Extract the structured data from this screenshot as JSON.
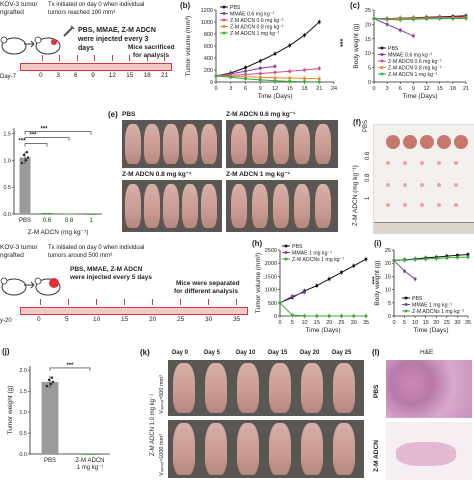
{
  "panel_a": {
    "title1": "KOV-3 tumor",
    "title2": "ngrafted",
    "tx_text1": "Tx initiated on day 0 when individual",
    "tx_text2": "tumors reached 100 mm³",
    "inject_text1": "PBS, MMAE, Z-M ADCN",
    "inject_text2": "were injected every 3",
    "inject_text3": "days",
    "sac_text1": "Mice sacrificed",
    "sac_text2": "for analysis",
    "day_start": "Day-7",
    "timeline": [
      "0",
      "3",
      "6",
      "9",
      "12",
      "15",
      "18",
      "21"
    ]
  },
  "panel_lower_a": {
    "title1": "KOV-3 tumor",
    "title2": "ngrafted",
    "tx_text1": "Tx initiated on day 0 when individual",
    "tx_text2": "tumors around 500 mm³",
    "inject_text1": "PBS, MMAE, Z-M ADCN",
    "inject_text2": "were injected every 5 days",
    "sep_text1": "Mice were separated",
    "sep_text2": "for different analysis",
    "day_start": "y-20",
    "timeline": [
      "0",
      "5",
      "10",
      "15",
      "20",
      "25",
      "30",
      "35"
    ]
  },
  "panel_e": {
    "label": "(e)",
    "rows": [
      "PBS",
      "Z-M ADCN 0.6 mg kg⁻¹",
      "Z-M ADCN 0.8 mg kg⁻¹",
      "Z-M ADCN 1 mg kg⁻¹"
    ]
  },
  "panel_f": {
    "label": "(f)",
    "side_label": "Z-M ADCN (mg kg⁻¹)",
    "rows": [
      "PBS",
      "0.6",
      "0.8",
      "1"
    ]
  },
  "panel_k": {
    "label": "(k)",
    "days": [
      "Day 0",
      "Day 5",
      "Day 10",
      "Day 15",
      "Day 20",
      "Day 25"
    ],
    "side_label": "Z-M ADCN 1.0 mg kg⁻¹",
    "v500": "Vₜᵤₘₒᵣ≈500 mm³",
    "v1000": "Vₜᵤₘₒᵣ≈1000 mm³"
  },
  "panel_l": {
    "label": "(l)",
    "title": "H&E",
    "rows": [
      "PBS",
      "Z-M ADCN"
    ]
  },
  "colors": {
    "pbs": "#111111",
    "mmae": "#7b3fa0",
    "zm06": "#d24a8a",
    "zm08": "#e5892a",
    "zm1": "#3aa83a",
    "bar": "#9a9a9a",
    "timeline": "#f2c8c8",
    "timeline_line": "#d23c3c"
  },
  "chart_data": [
    {
      "id": "b",
      "panel_label": "(b)",
      "type": "line",
      "ylabel": "Tumor volume (mm³)",
      "xlabel": "Time (Days)",
      "x": [
        0,
        3,
        6,
        9,
        12,
        15,
        18,
        21
      ],
      "xticks": [
        0,
        3,
        6,
        9,
        12,
        15,
        18,
        21,
        24
      ],
      "yticks": [
        0,
        200,
        400,
        600,
        800,
        1000,
        1200
      ],
      "xlim": [
        0,
        24
      ],
      "ylim": [
        0,
        1200
      ],
      "annotation": "***",
      "series": [
        {
          "name": "PBS",
          "values": [
            100,
            150,
            240,
            350,
            470,
            610,
            780,
            1000
          ]
        },
        {
          "name": "MMAE 0.6 mg kg⁻¹",
          "values": [
            100,
            135,
            180,
            230,
            260,
            null,
            null,
            null
          ]
        },
        {
          "name": "Z-M ADCN 0.6 mg kg⁻¹",
          "values": [
            100,
            110,
            125,
            140,
            160,
            180,
            200,
            225
          ]
        },
        {
          "name": "Z-M ADCN 0.8 mg kg⁻¹",
          "values": [
            100,
            95,
            90,
            80,
            70,
            65,
            60,
            55
          ]
        },
        {
          "name": "Z-M ADCN 1 mg kg⁻¹",
          "values": [
            100,
            80,
            55,
            35,
            20,
            10,
            5,
            2
          ]
        }
      ]
    },
    {
      "id": "c",
      "panel_label": "(c)",
      "type": "line",
      "ylabel": "Body weight (g)",
      "xlabel": "Time (Days)",
      "x": [
        0,
        3,
        6,
        9,
        12,
        15,
        18,
        21
      ],
      "xticks": [
        0,
        3,
        6,
        9,
        12,
        15,
        18,
        21
      ],
      "yticks": [
        0,
        5,
        10,
        15,
        20,
        25
      ],
      "xlim": [
        0,
        21
      ],
      "ylim": [
        0,
        25
      ],
      "series": [
        {
          "name": "PBS",
          "values": [
            22,
            22,
            22.2,
            22.3,
            22.5,
            22.6,
            22.8,
            23
          ]
        },
        {
          "name": "MMAE 0.6 mg kg⁻¹",
          "values": [
            22,
            20,
            18,
            16,
            null,
            null,
            null,
            null
          ]
        },
        {
          "name": "Z-M ADCN 0.6 mg kg⁻¹",
          "values": [
            22,
            22,
            22.1,
            22.2,
            22.3,
            22.4,
            22.5,
            22.6
          ]
        },
        {
          "name": "Z-M ADCN 0.8 mg kg⁻¹",
          "values": [
            22,
            21.8,
            21.9,
            22,
            22.1,
            22.1,
            22.2,
            22.3
          ]
        },
        {
          "name": "Z-M ADCN 1 mg kg⁻¹",
          "values": [
            22,
            21.7,
            21.6,
            21.8,
            21.9,
            22,
            22,
            22.1
          ]
        }
      ]
    },
    {
      "id": "d",
      "panel_label": "",
      "type": "bar",
      "ylabel": "",
      "xlabel": "Z-M ADCN (mg kg⁻¹)",
      "categories": [
        "PBS",
        "0.6",
        "0.8",
        "1"
      ],
      "values": [
        1.05,
        0.02,
        0.01,
        0.0
      ],
      "yticks": [
        0.0,
        0.5,
        1.0,
        1.5
      ],
      "ylim": [
        0,
        1.6
      ],
      "annotation": "***"
    },
    {
      "id": "h",
      "panel_label": "(h)",
      "type": "line",
      "ylabel": "Tumor volume (mm³)",
      "xlabel": "Time (Days)",
      "x": [
        0,
        5,
        10,
        15,
        20,
        25,
        30,
        35
      ],
      "xticks": [
        0,
        5,
        10,
        15,
        20,
        25,
        30,
        35
      ],
      "yticks": [
        0,
        500,
        1000,
        1500,
        2000,
        2500
      ],
      "xlim": [
        0,
        35
      ],
      "ylim": [
        0,
        2500
      ],
      "annotation": "***",
      "series": [
        {
          "name": "PBS",
          "values": [
            500,
            700,
            950,
            1150,
            1400,
            1650,
            1900,
            2150
          ]
        },
        {
          "name": "MMAE 1 mg kg⁻¹",
          "values": [
            500,
            750,
            900,
            null,
            null,
            null,
            null,
            null
          ]
        },
        {
          "name": "Z-M ADCNs 1 mg kg⁻¹",
          "values": [
            500,
            30,
            5,
            0,
            0,
            0,
            0,
            0
          ]
        }
      ]
    },
    {
      "id": "i",
      "panel_label": "(i)",
      "type": "line",
      "ylabel": "Body weight (g)",
      "xlabel": "Time (Days)",
      "x": [
        0,
        5,
        10,
        15,
        20,
        25,
        30,
        35
      ],
      "xticks": [
        0,
        5,
        10,
        15,
        20,
        25,
        30,
        35
      ],
      "yticks": [
        0,
        5,
        10,
        15,
        20,
        25
      ],
      "xlim": [
        0,
        35
      ],
      "ylim": [
        0,
        25
      ],
      "series": [
        {
          "name": "PBS",
          "values": [
            21,
            21.3,
            21.6,
            22,
            22.3,
            22.7,
            23,
            23.3
          ]
        },
        {
          "name": "MMAE 1 mg kg⁻¹",
          "values": [
            21,
            17,
            14,
            null,
            null,
            null,
            null,
            null
          ]
        },
        {
          "name": "Z-M ADCNs 1 mg kg⁻¹",
          "values": [
            21,
            21.2,
            21.4,
            21.6,
            21.8,
            22,
            22.2,
            22.3
          ]
        }
      ]
    },
    {
      "id": "j",
      "panel_label": "(j)",
      "type": "bar",
      "ylabel": "Tumor weight (g)",
      "xlabel": "",
      "categories": [
        "PBS",
        "Z-M ADCN\n1 mg kg⁻¹"
      ],
      "values": [
        1.72,
        0.0
      ],
      "yticks": [
        0.0,
        0.5,
        1.0,
        1.5,
        2.0
      ],
      "ylim": [
        0,
        2.1
      ],
      "annotation": "***"
    }
  ]
}
